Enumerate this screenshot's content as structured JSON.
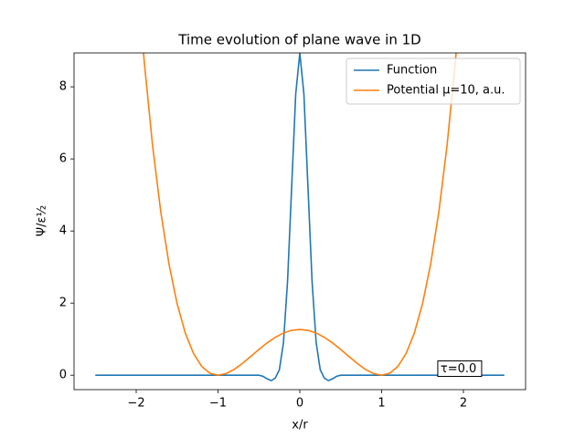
{
  "chart_data": {
    "type": "line",
    "title": "Time evolution of plane wave in 1D",
    "xlabel": "x/r",
    "ylabel": "Ψ/ε½",
    "annotation": "τ=0.0",
    "annotation_x": 1.72,
    "annotation_y": 0.17,
    "xlim": [
      -2.76,
      2.76
    ],
    "ylim": [
      -0.4,
      8.94
    ],
    "xticks": [
      {
        "value": -2,
        "label": "−2"
      },
      {
        "value": -1,
        "label": "−1"
      },
      0,
      1,
      2
    ],
    "yticks": [
      0,
      2,
      4,
      6,
      8
    ],
    "legend": "upper right",
    "series": [
      {
        "name": "Function",
        "color": "#1f77b4",
        "x": [
          -2.5,
          -1.0,
          -0.5,
          -0.45,
          -0.4,
          -0.35,
          -0.3,
          -0.25,
          -0.2,
          -0.15,
          -0.1,
          -0.05,
          0,
          0.05,
          0.1,
          0.15,
          0.2,
          0.25,
          0.3,
          0.35,
          0.4,
          0.45,
          0.5,
          1.0,
          2.5
        ],
        "values": [
          0,
          0,
          0,
          -0.03,
          -0.1,
          -0.15,
          -0.08,
          0.15,
          0.9,
          2.6,
          5.2,
          7.8,
          8.94,
          7.8,
          5.2,
          2.6,
          0.9,
          0.15,
          -0.08,
          -0.15,
          -0.1,
          -0.03,
          0,
          0,
          0
        ]
      },
      {
        "name": "Potential μ=10, a.u.",
        "color": "#ff7f0e",
        "x": [
          -2.0,
          -1.9,
          -1.8,
          -1.7,
          -1.6,
          -1.5,
          -1.4,
          -1.3,
          -1.2,
          -1.1,
          -1.0,
          -0.9,
          -0.8,
          -0.7,
          -0.6,
          -0.5,
          -0.4,
          -0.3,
          -0.2,
          -0.1,
          0,
          0.1,
          0.2,
          0.3,
          0.4,
          0.5,
          0.6,
          0.7,
          0.8,
          0.9,
          1.0,
          1.1,
          1.2,
          1.3,
          1.4,
          1.5,
          1.6,
          1.7,
          1.8,
          1.9,
          2.0
        ],
        "values": [
          11.43,
          8.6514,
          6.3724,
          4.5366,
          3.0907,
          1.9844,
          1.1704,
          0.6046,
          0.2459,
          0.056,
          0,
          0.0458,
          0.1646,
          0.3303,
          0.5202,
          0.7144,
          0.8961,
          1.0517,
          1.1704,
          1.2447,
          1.27,
          1.2447,
          1.1704,
          1.0517,
          0.8961,
          0.7144,
          0.5202,
          0.3303,
          0.1646,
          0.0458,
          0,
          0.056,
          0.2459,
          0.6046,
          1.1704,
          1.9844,
          3.0907,
          4.5366,
          6.3724,
          8.6514,
          11.43
        ]
      }
    ]
  }
}
